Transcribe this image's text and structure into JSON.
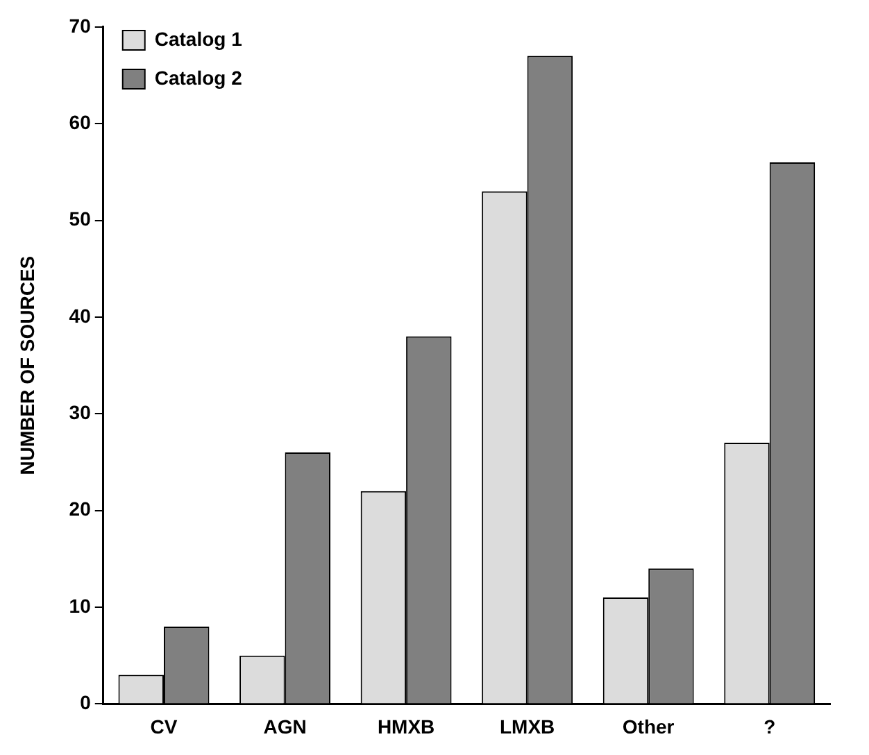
{
  "chart_data": {
    "type": "bar",
    "ylabel": "NUMBER OF SOURCES",
    "categories": [
      "CV",
      "AGN",
      "HMXB",
      "LMXB",
      "Other",
      "?"
    ],
    "series": [
      {
        "name": "Catalog 1",
        "color": "#dcdcdc",
        "values": [
          3,
          5,
          22,
          53,
          11,
          27
        ]
      },
      {
        "name": "Catalog 2",
        "color": "#808080",
        "values": [
          8,
          26,
          38,
          67,
          14,
          56
        ]
      }
    ],
    "ylim": [
      0,
      70
    ],
    "yticks": [
      0,
      10,
      20,
      30,
      40,
      50,
      60,
      70
    ],
    "grid": false,
    "legend": "top left"
  }
}
